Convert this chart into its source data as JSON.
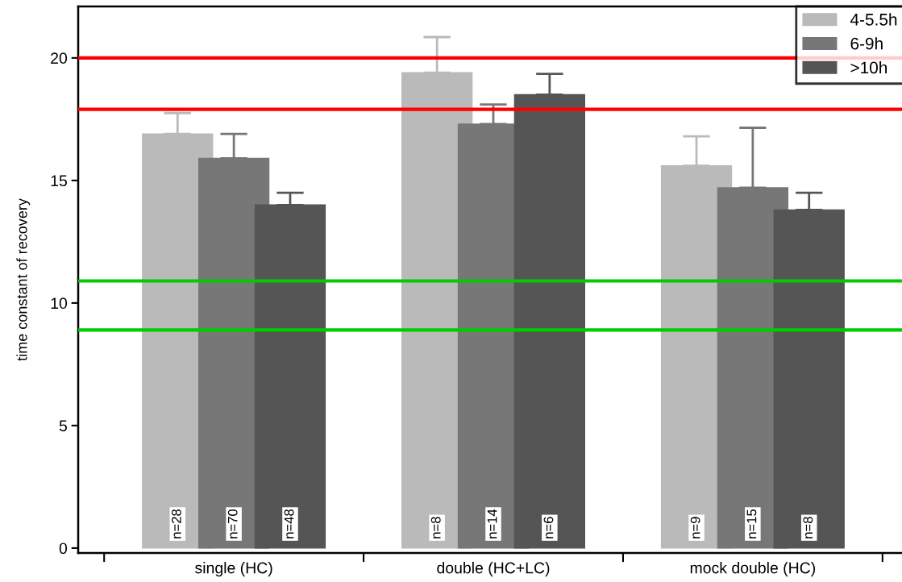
{
  "chart_data": {
    "type": "bar",
    "ylabel": "time constant of recovery",
    "categories": [
      "single (HC)",
      "double (HC+LC)",
      "mock double (HC)"
    ],
    "series": [
      {
        "name": "4-5.5h",
        "color": "#bababa",
        "values": [
          16.9,
          19.4,
          15.6
        ],
        "errors": [
          [
            16.9,
            17.75
          ],
          [
            19.4,
            20.85
          ],
          [
            15.6,
            16.8
          ]
        ]
      },
      {
        "name": "6-9h",
        "color": "#777777",
        "values": [
          15.9,
          17.3,
          14.7
        ],
        "errors": [
          [
            15.9,
            16.9
          ],
          [
            17.3,
            18.1
          ],
          [
            14.7,
            17.15
          ]
        ]
      },
      {
        "name": ">10h",
        "color": "#555555",
        "values": [
          14.0,
          18.5,
          13.8
        ],
        "errors": [
          [
            14.0,
            14.5
          ],
          [
            18.5,
            19.35
          ],
          [
            13.8,
            14.5
          ]
        ]
      }
    ],
    "annotations": [
      "n=28",
      "n=70",
      "n=48",
      "n=8",
      "n=14",
      "n=6",
      "n=9",
      "n=15",
      "n=8"
    ],
    "ylim": [
      -0.2,
      22.1
    ],
    "yticks": [
      0,
      5,
      10,
      15,
      20
    ],
    "ref_lines": [
      {
        "axis": "y",
        "value": 20,
        "color": "#ff0000"
      },
      {
        "axis": "y",
        "value": 17.9,
        "color": "#ff0000"
      },
      {
        "axis": "y",
        "value": 10.9,
        "color": "#00cc00"
      },
      {
        "axis": "y",
        "value": 8.9,
        "color": "#00cc00"
      }
    ],
    "legend": "top right",
    "grid": false
  }
}
